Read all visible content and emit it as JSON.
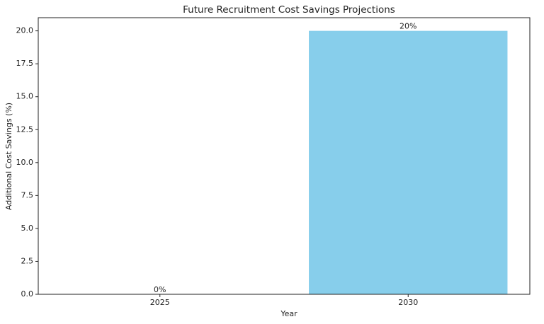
{
  "chart_data": {
    "type": "bar",
    "title": "Future Recruitment Cost Savings Projections",
    "x_label": "Year",
    "y_label": "Additional Cost Savings (%)",
    "categories": [
      "2025",
      "2030"
    ],
    "values": [
      0,
      20
    ],
    "value_labels": [
      "0%",
      "20%"
    ],
    "color": "#87ceeb",
    "ylim": [
      0,
      21
    ],
    "yticks": [
      {
        "value": 0,
        "label": "0.0"
      },
      2.5,
      {
        "value": 5,
        "label": "5.0"
      },
      7.5,
      {
        "value": 10,
        "label": "10.0"
      },
      12.5,
      {
        "value": 15,
        "label": "15.0"
      },
      17.5,
      {
        "value": 20,
        "label": "20.0"
      }
    ]
  }
}
